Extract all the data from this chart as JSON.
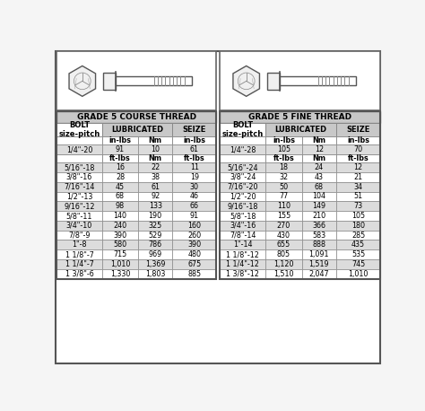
{
  "title_left": "GRADE 5 COURSE THREAD",
  "title_right": "GRADE 5 FINE THREAD",
  "course_first_row": [
    "1/4\"-20",
    "91",
    "10",
    "61"
  ],
  "fine_first_row": [
    "1/4\"-28",
    "105",
    "12",
    "70"
  ],
  "course_rows": [
    [
      "5/16\"-18",
      "16",
      "22",
      "11"
    ],
    [
      "3/8\"-16",
      "28",
      "38",
      "19"
    ],
    [
      "7/16\"-14",
      "45",
      "61",
      "30"
    ],
    [
      "1/2\"-13",
      "68",
      "92",
      "46"
    ],
    [
      "9/16\"-12",
      "98",
      "133",
      "66"
    ],
    [
      "5/8\"-11",
      "140",
      "190",
      "91"
    ],
    [
      "3/4\"-10",
      "240",
      "325",
      "160"
    ],
    [
      "7/8\"-9",
      "390",
      "529",
      "260"
    ],
    [
      "1\"-8",
      "580",
      "786",
      "390"
    ],
    [
      "1 1/8\"-7",
      "715",
      "969",
      "480"
    ],
    [
      "1 1/4\"-7",
      "1,010",
      "1,369",
      "675"
    ],
    [
      "1 3/8\"-6",
      "1,330",
      "1,803",
      "885"
    ]
  ],
  "fine_rows": [
    [
      "5/16\"-24",
      "18",
      "24",
      "12"
    ],
    [
      "3/8\"-24",
      "32",
      "43",
      "21"
    ],
    [
      "7/16\"-20",
      "50",
      "68",
      "34"
    ],
    [
      "1/2\"-20",
      "77",
      "104",
      "51"
    ],
    [
      "9/16\"-18",
      "110",
      "149",
      "73"
    ],
    [
      "5/8\"-18",
      "155",
      "210",
      "105"
    ],
    [
      "3/4\"-16",
      "270",
      "366",
      "180"
    ],
    [
      "7/8\"-14",
      "430",
      "583",
      "285"
    ],
    [
      "1\"-14",
      "655",
      "888",
      "435"
    ],
    [
      "1 1/8\"-12",
      "805",
      "1,091",
      "535"
    ],
    [
      "1 1/4\"-12",
      "1,120",
      "1,519",
      "745"
    ],
    [
      "1 3/8\"-12",
      "1,510",
      "2,047",
      "1,010"
    ]
  ],
  "bg_color": "#f0f0f0",
  "header_bg": "#c8c8c8",
  "row_alt_bg": "#dcdcdc",
  "border_color": "#888888",
  "text_color": "#000000",
  "title_fontsize": 6.5,
  "header_fontsize": 6.0,
  "data_fontsize": 5.8
}
